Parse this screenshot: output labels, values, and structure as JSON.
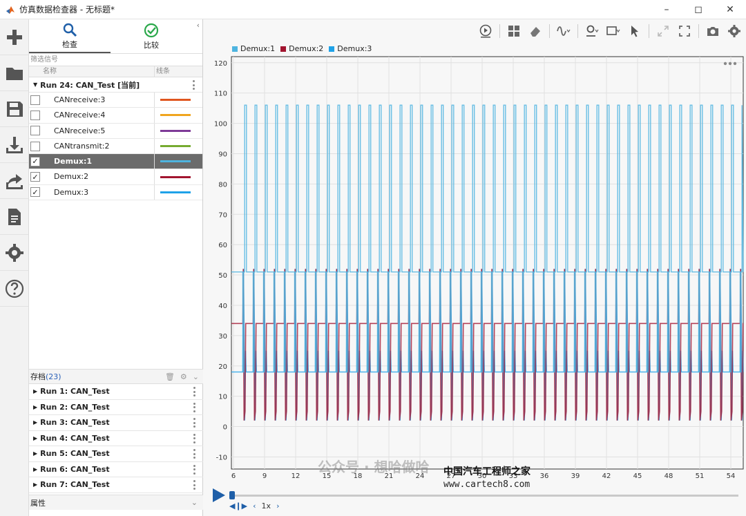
{
  "window": {
    "title": "仿真数据检查器 - 无标题*",
    "controls": [
      "minimize",
      "maximize",
      "close"
    ]
  },
  "rail": {
    "items": [
      "plus-icon",
      "folder-icon",
      "save-icon",
      "download-icon",
      "share-icon",
      "document-icon",
      "gear-icon",
      "help-icon"
    ]
  },
  "mode_tabs": [
    {
      "label": "检查",
      "icon": "search-icon",
      "active": true
    },
    {
      "label": "比较",
      "icon": "check-circle-icon",
      "active": false
    }
  ],
  "filter": {
    "placeholder": "筛选信号"
  },
  "columns": {
    "name": "名称",
    "line": "线条"
  },
  "current_run": {
    "label": "Run 24: CAN_Test [当前]"
  },
  "signals": [
    {
      "name": "CANreceive:3",
      "checked": false,
      "color": "#e0561f",
      "selected": false
    },
    {
      "name": "CANreceive:4",
      "checked": false,
      "color": "#f0a51e",
      "selected": false
    },
    {
      "name": "CANreceive:5",
      "checked": false,
      "color": "#7e3a97",
      "selected": false
    },
    {
      "name": "CANtransmit:2",
      "checked": false,
      "color": "#76ab30",
      "selected": false
    },
    {
      "name": "Demux:1",
      "checked": true,
      "color": "#4eb4e0",
      "selected": true
    },
    {
      "name": "Demux:2",
      "checked": true,
      "color": "#a2142f",
      "selected": false
    },
    {
      "name": "Demux:3",
      "checked": true,
      "color": "#1fa2e8",
      "selected": false
    }
  ],
  "archive": {
    "label": "存档",
    "count": "(23)",
    "runs": [
      "Run 1: CAN_Test",
      "Run 2: CAN_Test",
      "Run 3: CAN_Test",
      "Run 4: CAN_Test",
      "Run 5: CAN_Test",
      "Run 6: CAN_Test",
      "Run 7: CAN_Test"
    ]
  },
  "properties": {
    "label": "属性"
  },
  "legend": [
    {
      "name": "Demux:1",
      "color": "#4eb4e0"
    },
    {
      "name": "Demux:2",
      "color": "#a2142f"
    },
    {
      "name": "Demux:3",
      "color": "#1fa2e8"
    }
  ],
  "chart_data": {
    "type": "line",
    "xlim": [
      5.8,
      55.2
    ],
    "ylim": [
      -14,
      122
    ],
    "x_ticks": [
      6,
      9,
      12,
      15,
      18,
      21,
      24,
      27,
      30,
      33,
      36,
      39,
      42,
      45,
      48,
      51,
      54
    ],
    "y_ticks": [
      -10,
      0,
      10,
      20,
      30,
      40,
      50,
      60,
      70,
      80,
      90,
      100,
      110,
      120
    ],
    "grid": true,
    "legend_position": "top-left",
    "pulse_period": 1,
    "series": [
      {
        "name": "Demux:1",
        "color": "#4eb4e0",
        "baseline": 51,
        "pre_start_level": 51,
        "levels": [
          18,
          40,
          51,
          60,
          75,
          90,
          106
        ],
        "pulse_start": 6.9
      },
      {
        "name": "Demux:2",
        "color": "#a2142f",
        "baseline": 34,
        "pre_start_level": 34,
        "levels": [
          2,
          5,
          34,
          52
        ],
        "pulse_start": 6.9
      },
      {
        "name": "Demux:3",
        "color": "#1fa2e8",
        "baseline": 18,
        "pre_start_level": 18,
        "levels": [
          2,
          18,
          25,
          34,
          52
        ],
        "pulse_start": 6.9
      }
    ]
  },
  "playback": {
    "speed": "1x"
  },
  "watermark": {
    "wechat": "公众号 · 想哈做哈",
    "site_cn": "中国汽车工程师之家",
    "site_url": "www.cartech8.com"
  }
}
